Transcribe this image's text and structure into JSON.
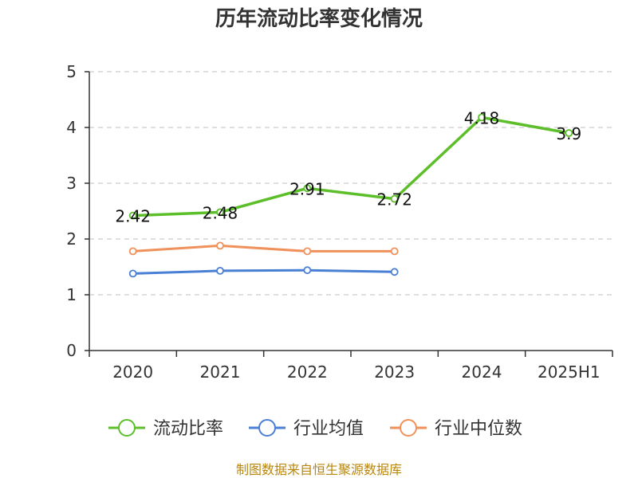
{
  "chart_data": {
    "type": "line",
    "title": "历年流动比率变化情况",
    "categories": [
      "2020",
      "2021",
      "2022",
      "2023",
      "2024",
      "2025H1"
    ],
    "ylim": [
      0,
      5
    ],
    "yticks": [
      "0",
      "1",
      "2",
      "3",
      "4",
      "5"
    ],
    "grid": true,
    "legend_position": "bottom",
    "series": [
      {
        "name": "流动比率",
        "color": "#5cbf2a",
        "values": [
          2.42,
          2.48,
          2.91,
          2.72,
          4.18,
          3.9
        ],
        "labels": [
          "2.42",
          "2.48",
          "2.91",
          "2.72",
          "4.18",
          "3.9"
        ]
      },
      {
        "name": "行业均值",
        "color": "#4a7fd6",
        "values": [
          1.38,
          1.43,
          1.44,
          1.41,
          null,
          null
        ]
      },
      {
        "name": "行业中位数",
        "color": "#f0905a",
        "values": [
          1.78,
          1.88,
          1.78,
          1.78,
          null,
          null
        ]
      }
    ],
    "source": "制图数据来自恒生聚源数据库"
  }
}
